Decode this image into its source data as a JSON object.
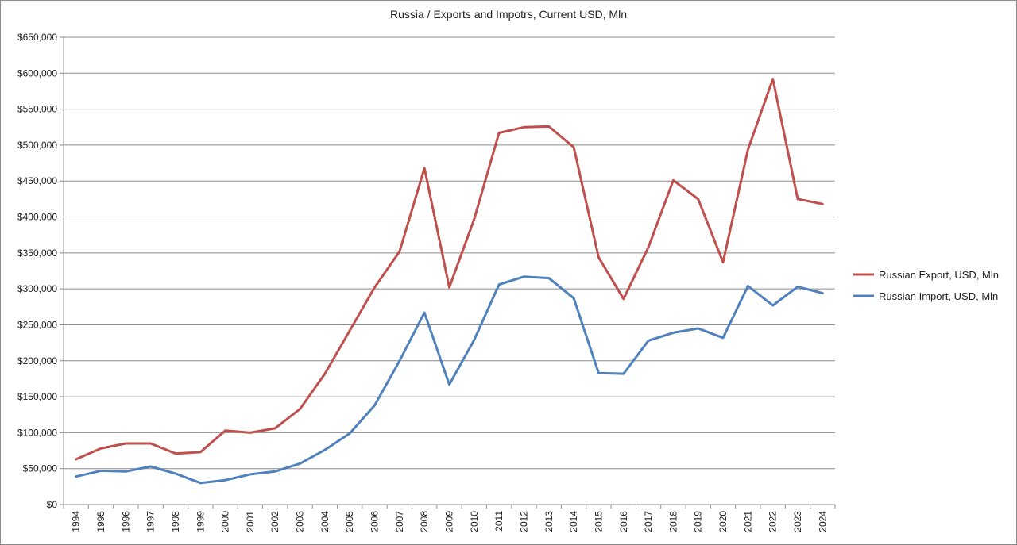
{
  "chart_data": {
    "type": "line",
    "title": "Russia / Exports and Impotrs, Current USD, Mln",
    "xlabel": "",
    "ylabel": "",
    "ylim": [
      0,
      650000
    ],
    "y_ticks": [
      0,
      50000,
      100000,
      150000,
      200000,
      250000,
      300000,
      350000,
      400000,
      450000,
      500000,
      550000,
      600000,
      650000
    ],
    "y_tick_labels": [
      "$0",
      "$50,000",
      "$100,000",
      "$150,000",
      "$200,000",
      "$250,000",
      "$300,000",
      "$350,000",
      "$400,000",
      "$450,000",
      "$500,000",
      "$550,000",
      "$600,000",
      "$650,000"
    ],
    "grid": true,
    "legend_position": "right",
    "categories": [
      "1994",
      "1995",
      "1996",
      "1997",
      "1998",
      "1999",
      "2000",
      "2001",
      "2002",
      "2003",
      "2004",
      "2005",
      "2006",
      "2007",
      "2008",
      "2009",
      "2010",
      "2011",
      "2012",
      "2013",
      "2014",
      "2015",
      "2016",
      "2017",
      "2018",
      "2019",
      "2020",
      "2021",
      "2022",
      "2023",
      "2024"
    ],
    "series": [
      {
        "name": "Russian Export, USD, Mln",
        "color": "#c0504d",
        "values": [
          63000,
          78000,
          85000,
          85000,
          71000,
          73000,
          103000,
          100000,
          106000,
          133000,
          182000,
          242000,
          302000,
          352000,
          468000,
          302000,
          397000,
          517000,
          525000,
          526000,
          497000,
          344000,
          286000,
          358000,
          451000,
          425000,
          337000,
          494000,
          592000,
          425000,
          418000
        ]
      },
      {
        "name": "Russian Import, USD, Mln",
        "color": "#4f81bd",
        "values": [
          39000,
          47000,
          46000,
          53000,
          43000,
          30000,
          34000,
          42000,
          46000,
          57000,
          76000,
          99000,
          138000,
          200000,
          267000,
          167000,
          229000,
          306000,
          317000,
          315000,
          287000,
          183000,
          182000,
          228000,
          239000,
          245000,
          232000,
          304000,
          277000,
          303000,
          294000
        ]
      }
    ]
  }
}
